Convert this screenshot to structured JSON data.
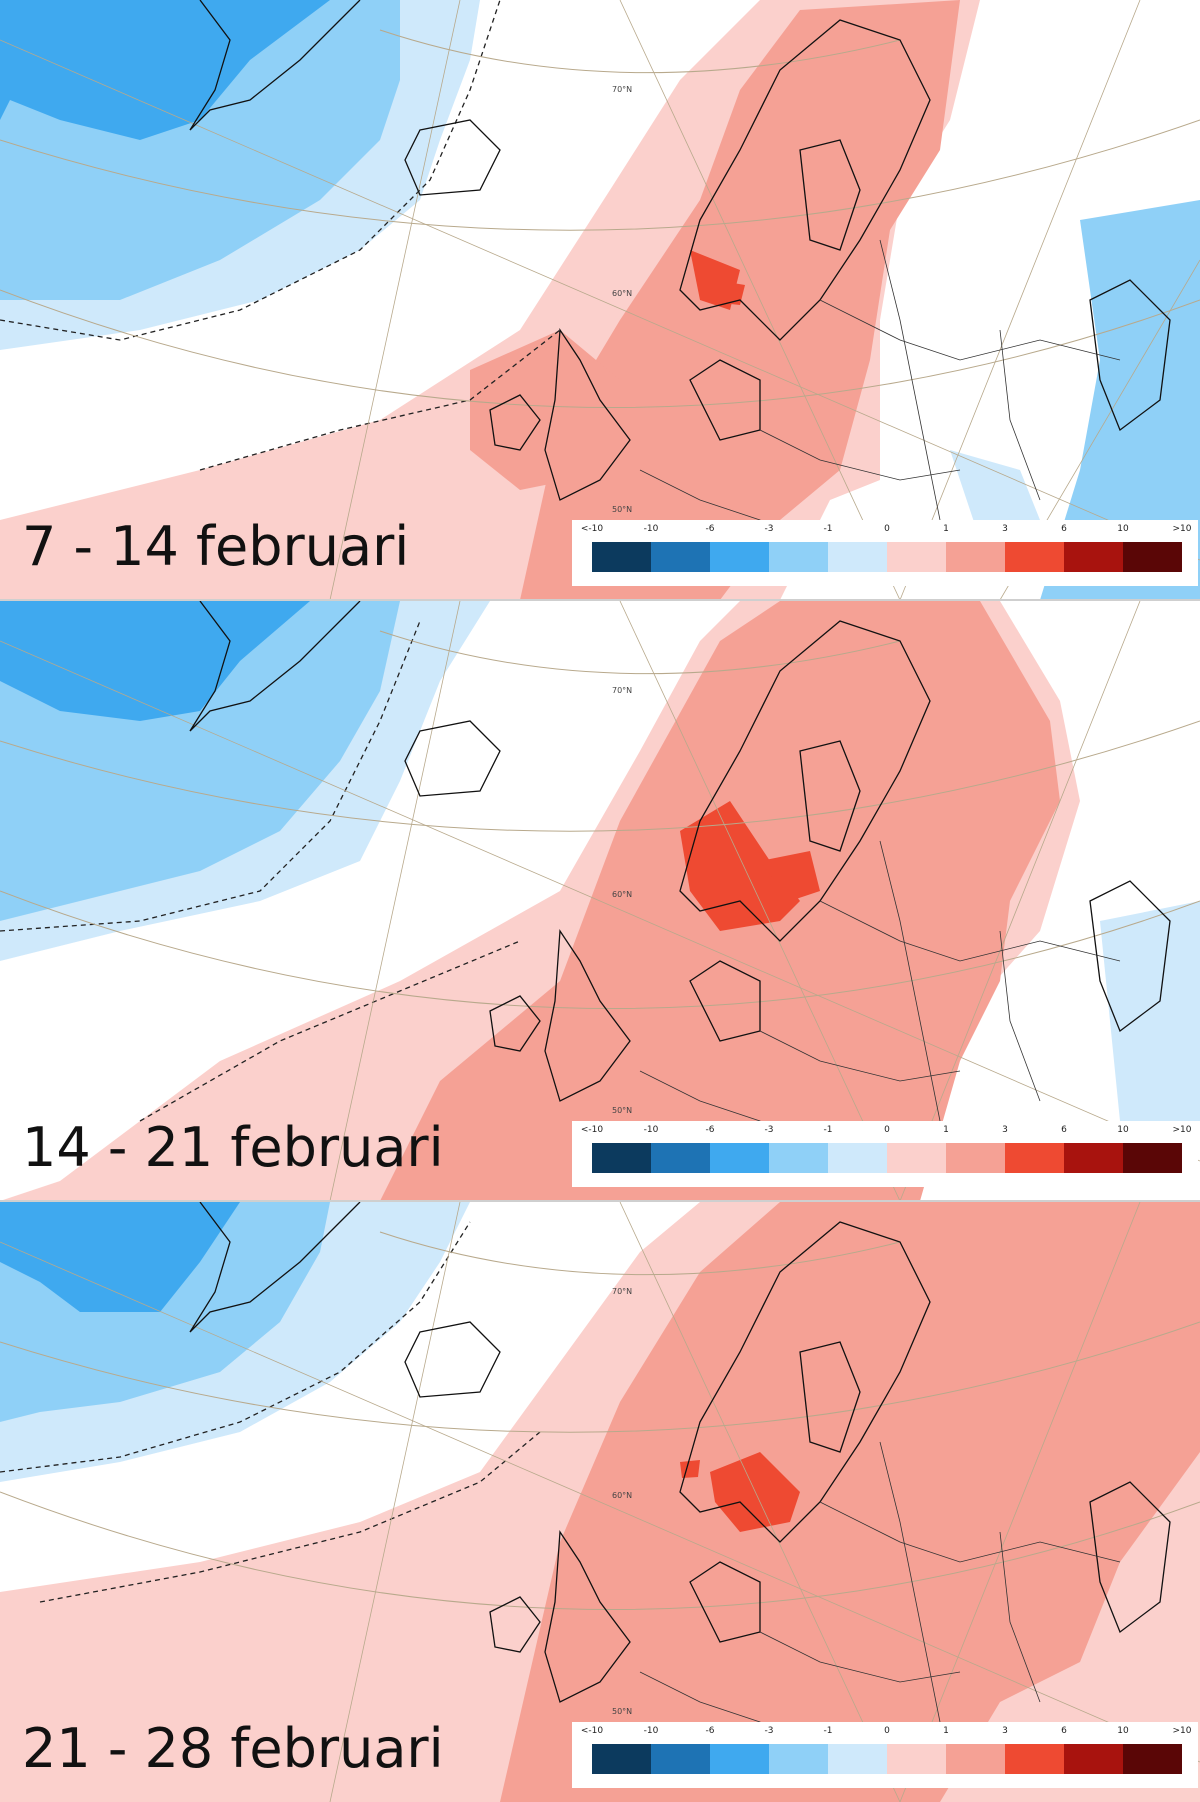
{
  "panels": [
    {
      "period": "7 - 14 februari"
    },
    {
      "period": "14 - 21 februari"
    },
    {
      "period": "21 - 28 februari"
    }
  ],
  "graticule": {
    "lat70": "70°N",
    "lat60": "60°N",
    "lat50": "50°N"
  },
  "legend": {
    "labels": [
      "<-10",
      "-10",
      "-6",
      "-3",
      "-1",
      "0",
      "1",
      "3",
      "6",
      "10",
      ">10"
    ],
    "colors": [
      "#0c3a5e",
      "#1e73b4",
      "#3fa9ef",
      "#8fd0f7",
      "#cfe9fb",
      "#fbd0cc",
      "#f5a195",
      "#ee4a32",
      "#a8130e",
      "#5a0606"
    ]
  },
  "colors": {
    "cold_strong": "#3fa9ef",
    "cold_mid": "#8fd0f7",
    "cold_weak": "#cfe9fb",
    "warm_weak": "#fbd0cc",
    "warm_mid": "#f5a195",
    "warm_strong": "#ee4a32"
  }
}
